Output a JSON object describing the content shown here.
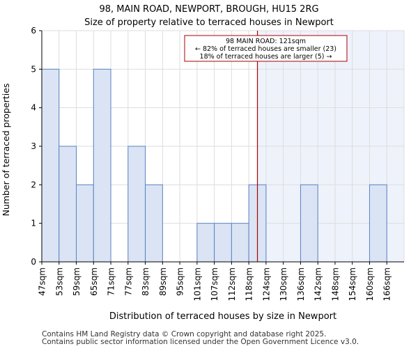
{
  "chart_data": {
    "type": "bar",
    "title_line1": "98, MAIN ROAD, NEWPORT, BROUGH, HU15 2RG",
    "title_line2": "Size of property relative to terraced houses in Newport",
    "xlabel": "Distribution of terraced houses by size in Newport",
    "ylabel": "Number of terraced properties",
    "categories": [
      "47sqm",
      "53sqm",
      "59sqm",
      "65sqm",
      "71sqm",
      "77sqm",
      "83sqm",
      "89sqm",
      "95sqm",
      "101sqm",
      "107sqm",
      "112sqm",
      "118sqm",
      "124sqm",
      "130sqm",
      "136sqm",
      "142sqm",
      "148sqm",
      "154sqm",
      "160sqm",
      "166sqm"
    ],
    "values": [
      5,
      3,
      2,
      5,
      0,
      3,
      2,
      0,
      0,
      1,
      1,
      1,
      2,
      0,
      0,
      2,
      0,
      0,
      0,
      2,
      0
    ],
    "ylim": [
      0,
      6
    ],
    "yticks": [
      0,
      1,
      2,
      3,
      4,
      5,
      6
    ],
    "grid": true,
    "marker": {
      "value_sqm": 121,
      "position_bins": 12.5,
      "shaded_from_bins": 12.5,
      "color": "#aa0000",
      "label_line1": "98 MAIN ROAD: 121sqm",
      "label_line2": "← 82% of terraced houses are smaller (23)",
      "label_line3": "18% of terraced houses are larger (5) →"
    },
    "colors": {
      "bar_fill": "#dae4f4",
      "bar_stroke": "#5b82c2",
      "grid": "#dddddd",
      "shade": "#eef2fb"
    }
  },
  "footer": {
    "line1": "Contains HM Land Registry data © Crown copyright and database right 2025.",
    "line2": "Contains public sector information licensed under the Open Government Licence v3.0."
  }
}
